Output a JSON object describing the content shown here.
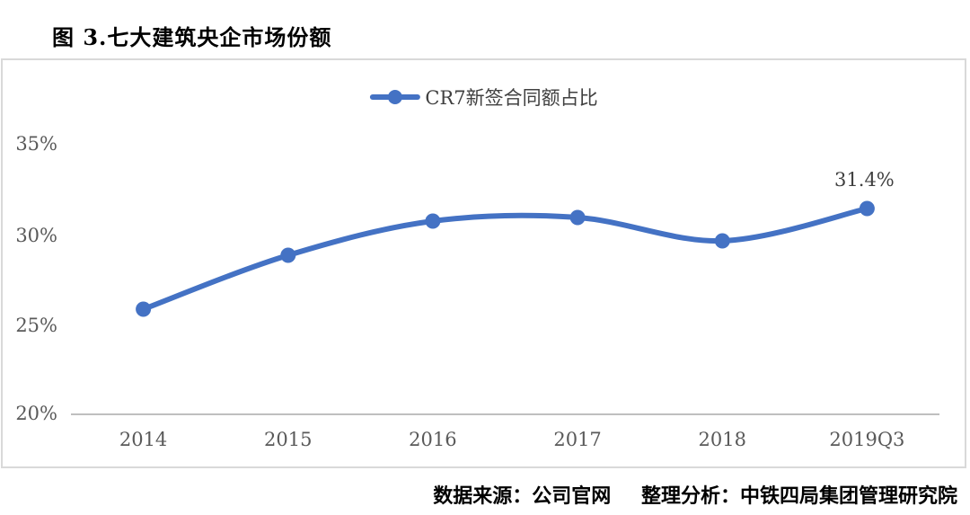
{
  "page": {
    "title": "图 3.七大建筑央企市场份额"
  },
  "legend": {
    "label": "CR7新签合同额占比"
  },
  "annotation": {
    "last_value_label": "31.4%"
  },
  "footer": {
    "source": "数据来源：公司官网",
    "analysis": "整理分析：中铁四局集团管理研究院"
  },
  "colors": {
    "series_blue": "#4472C4",
    "axis_line": "#BFBFBF",
    "frame_border": "#D9D9D9",
    "tick_text": "#595959",
    "title_text": "#000000"
  },
  "chart_data": {
    "type": "line",
    "title": "图 3.七大建筑央企市场份额",
    "categories": [
      "2014",
      "2015",
      "2016",
      "2017",
      "2018",
      "2019Q3"
    ],
    "series": [
      {
        "name": "CR7新签合同额占比",
        "values": [
          25.8,
          28.8,
          30.7,
          30.9,
          29.6,
          31.4
        ]
      }
    ],
    "xlabel": "",
    "ylabel": "",
    "ylim": [
      20,
      35
    ],
    "yticks": [
      "35%",
      "30%",
      "25%",
      "20%"
    ],
    "grid": false,
    "legend_position": "top-center",
    "line_color": "#4472C4",
    "line_smoothed": true,
    "markers": "circle",
    "data_labels": {
      "2019Q3": "31.4%"
    }
  }
}
